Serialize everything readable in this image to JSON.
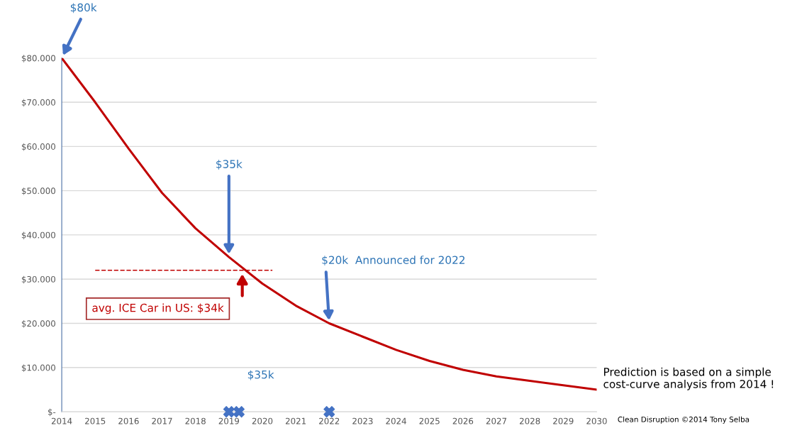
{
  "chart_data": {
    "type": "line",
    "x": [
      2014,
      2015,
      2016,
      2017,
      2018,
      2019,
      2020,
      2021,
      2022,
      2023,
      2024,
      2025,
      2026,
      2027,
      2028,
      2029,
      2030
    ],
    "series": [
      {
        "color": "#c00000",
        "values": [
          80000,
          70000,
          59500,
          49500,
          41500,
          35000,
          29000,
          24000,
          20000,
          17000,
          14000,
          11500,
          9500,
          8000,
          7000,
          6000,
          5000
        ]
      },
      {
        "type": "line",
        "color": "#c00000",
        "line_style": "dashed",
        "x": [
          2015,
          2020.3
        ],
        "values": [
          32000,
          32000
        ]
      },
      {
        "type": "scatter",
        "color": "#4472c4",
        "marker": "cross",
        "x": [
          2019,
          2019.3,
          2022
        ],
        "values": [
          0,
          0,
          0
        ]
      }
    ],
    "xlim": [
      2014,
      2030
    ],
    "xticks": [
      2014,
      2015,
      2016,
      2017,
      2018,
      2019,
      2020,
      2021,
      2022,
      2023,
      2024,
      2025,
      2026,
      2027,
      2028,
      2029,
      2030
    ],
    "ylim": [
      0,
      80000
    ],
    "yticks": [
      {
        "value": 0,
        "label": "$-"
      },
      {
        "value": 10000,
        "label": "$10.000"
      },
      {
        "value": 20000,
        "label": "$20.000"
      },
      {
        "value": 30000,
        "label": "$30.000"
      },
      {
        "value": 40000,
        "label": "$40.000"
      },
      {
        "value": 50000,
        "label": "$50.000"
      },
      {
        "value": 60000,
        "label": "$60.000"
      },
      {
        "value": 70000,
        "label": "$70.000"
      },
      {
        "value": 80000,
        "label": "$80.000"
      }
    ],
    "grid": "y",
    "annotations": [
      {
        "text": "$80k",
        "x": 2014,
        "y": 80000
      },
      {
        "text": "$35k",
        "x": 2019,
        "y": 35000
      },
      {
        "text": "$20k  Announced for 2022",
        "x": 2022,
        "y": 20000
      },
      "avg. ICE Car in US: $34k",
      "$35k",
      "Prediction is based on a simple\ncost-curve analysis from 2014 !",
      "Clean Disruption ©2014 Tony Selba"
    ]
  }
}
